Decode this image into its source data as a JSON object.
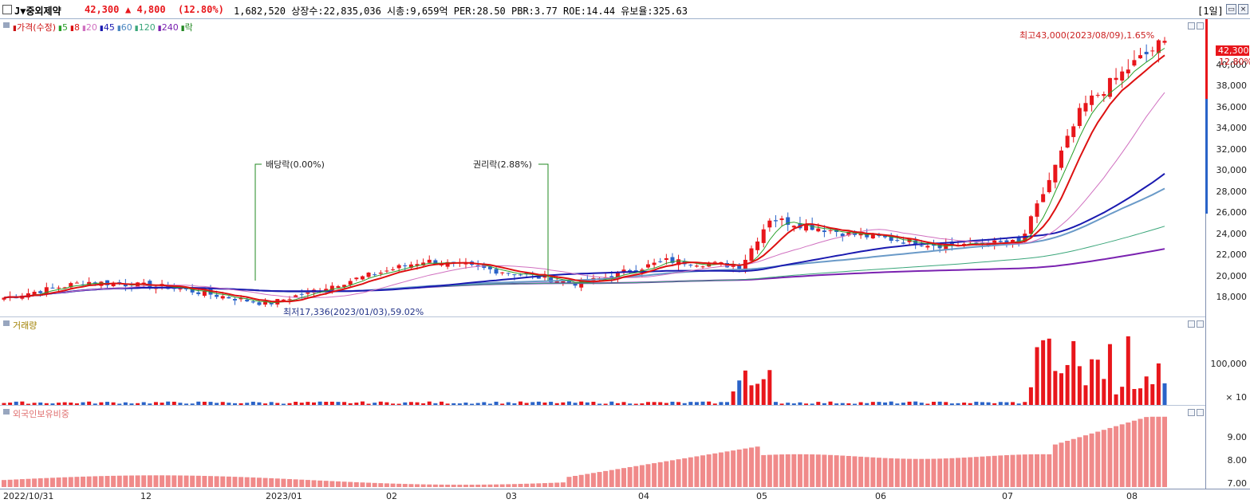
{
  "header": {
    "stock_name": "J▼중외제약",
    "price": "42,300",
    "change": "▲ 4,800",
    "change_pct": "(12.80%)",
    "stats": "1,682,520  상장수:22,835,036 시총:9,659억 PER:28.50 PBR:3.77 ROE:14.44 유보율:325.63",
    "period_button": "[1일]",
    "colors": {
      "up": "#e8161b",
      "down": "#2a63c8"
    }
  },
  "price_pane": {
    "legend": [
      {
        "label": "가격(수정)",
        "color": "#cc1111"
      },
      {
        "label": "5",
        "color": "#2aa02a"
      },
      {
        "label": "8",
        "color": "#dd1111"
      },
      {
        "label": "20",
        "color": "#d070c0"
      },
      {
        "label": "45",
        "color": "#1a1ab0"
      },
      {
        "label": "60",
        "color": "#4a86c0"
      },
      {
        "label": "120",
        "color": "#3aa67a"
      },
      {
        "label": "240",
        "color": "#7a22b0"
      },
      {
        "label": "락",
        "color": "#228822"
      }
    ],
    "annotations": {
      "high": "최고43,000(2023/08/09),1.65%",
      "low": "최저17,336(2023/01/03),59.02%",
      "dividend": "배당락(0.00%)",
      "rights": "권리락(2.88%)"
    },
    "current_tag": {
      "price": "42,300",
      "pct": "12.80%"
    },
    "y_labels": [
      "40,000",
      "38,000",
      "36,000",
      "34,000",
      "32,000",
      "30,000",
      "28,000",
      "26,000",
      "24,000",
      "22,000",
      "20,000",
      "18,000"
    ]
  },
  "volume_pane": {
    "legend": "거래량",
    "y_labels": [
      "100,000",
      "× 10"
    ]
  },
  "foreign_pane": {
    "legend": "외국인보유비중",
    "y_labels": [
      "9.00",
      "8.00",
      "7.00"
    ]
  },
  "x_axis": [
    "2022/10/31",
    "12",
    "2023/01",
    "02",
    "03",
    "04",
    "05",
    "06",
    "07",
    "08"
  ],
  "chart_data": {
    "type": "candlestick",
    "x_range": [
      "2022/10/31",
      "2023/08/09"
    ],
    "price_ylim": [
      16900,
      43600
    ],
    "volume_ylim": [
      0,
      170000
    ],
    "foreign_ylim": [
      6.8,
      10.2
    ],
    "approx_close_path": [
      {
        "date": "2022-10-31",
        "close": 18000
      },
      {
        "date": "2022-11-20",
        "close": 19500
      },
      {
        "date": "2022-12-10",
        "close": 19000
      },
      {
        "date": "2023-01-03",
        "close": 17400
      },
      {
        "date": "2023-01-20",
        "close": 19300
      },
      {
        "date": "2023-02-10",
        "close": 21500
      },
      {
        "date": "2023-03-01",
        "close": 20500
      },
      {
        "date": "2023-03-20",
        "close": 19300
      },
      {
        "date": "2023-04-10",
        "close": 21500
      },
      {
        "date": "2023-04-28",
        "close": 21000
      },
      {
        "date": "2023-05-05",
        "close": 25500
      },
      {
        "date": "2023-05-25",
        "close": 24000
      },
      {
        "date": "2023-06-15",
        "close": 23000
      },
      {
        "date": "2023-07-05",
        "close": 23200
      },
      {
        "date": "2023-07-20",
        "close": 36000
      },
      {
        "date": "2023-08-01",
        "close": 40000
      },
      {
        "date": "2023-08-09",
        "close": 42300
      }
    ]
  }
}
